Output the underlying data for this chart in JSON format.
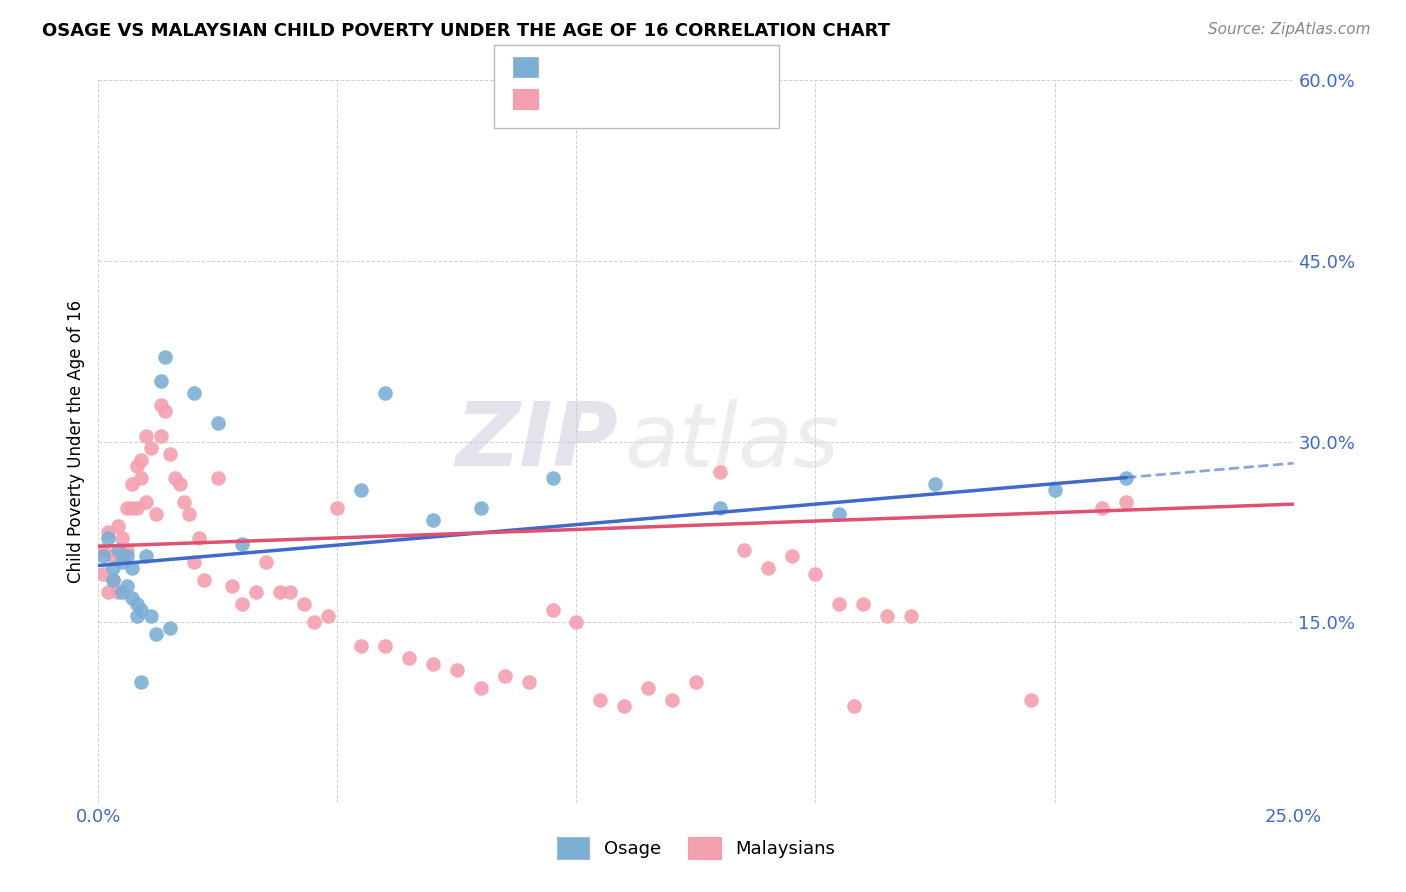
{
  "title": "OSAGE VS MALAYSIAN CHILD POVERTY UNDER THE AGE OF 16 CORRELATION CHART",
  "source": "Source: ZipAtlas.com",
  "ylabel": "Child Poverty Under the Age of 16",
  "xlim": [
    0.0,
    0.25
  ],
  "ylim": [
    0.0,
    0.6
  ],
  "xticks": [
    0.0,
    0.05,
    0.1,
    0.15,
    0.2,
    0.25
  ],
  "yticks": [
    0.0,
    0.15,
    0.3,
    0.45,
    0.6
  ],
  "xticklabels": [
    "0.0%",
    "",
    "",
    "",
    "",
    "25.0%"
  ],
  "yticklabels": [
    "",
    "15.0%",
    "30.0%",
    "45.0%",
    "60.0%"
  ],
  "osage_color": "#7bafd4",
  "malay_color": "#f4a0b0",
  "osage_line_color": "#4169c8",
  "malay_line_color": "#e05070",
  "background_color": "#ffffff",
  "grid_color": "#cccccc",
  "axis_label_color": "#4169c8",
  "watermark_zip": "ZIP",
  "watermark_atlas": "atlas",
  "osage_x": [
    0.001,
    0.002,
    0.003,
    0.003,
    0.004,
    0.005,
    0.005,
    0.006,
    0.006,
    0.007,
    0.007,
    0.008,
    0.008,
    0.009,
    0.009,
    0.01,
    0.011,
    0.012,
    0.013,
    0.014,
    0.015,
    0.02,
    0.025,
    0.03,
    0.055,
    0.06,
    0.07,
    0.08,
    0.095,
    0.13,
    0.155,
    0.175,
    0.2,
    0.215
  ],
  "osage_y": [
    0.205,
    0.22,
    0.195,
    0.185,
    0.21,
    0.2,
    0.175,
    0.205,
    0.18,
    0.195,
    0.17,
    0.165,
    0.155,
    0.16,
    0.1,
    0.205,
    0.155,
    0.14,
    0.35,
    0.37,
    0.145,
    0.34,
    0.315,
    0.215,
    0.26,
    0.34,
    0.235,
    0.245,
    0.27,
    0.245,
    0.24,
    0.265,
    0.26,
    0.27
  ],
  "malay_x": [
    0.001,
    0.001,
    0.002,
    0.002,
    0.003,
    0.003,
    0.004,
    0.004,
    0.005,
    0.005,
    0.006,
    0.006,
    0.007,
    0.007,
    0.008,
    0.008,
    0.009,
    0.009,
    0.01,
    0.01,
    0.011,
    0.012,
    0.013,
    0.013,
    0.014,
    0.015,
    0.016,
    0.017,
    0.018,
    0.019,
    0.02,
    0.021,
    0.022,
    0.025,
    0.028,
    0.03,
    0.033,
    0.035,
    0.038,
    0.04,
    0.043,
    0.045,
    0.048,
    0.05,
    0.055,
    0.06,
    0.065,
    0.07,
    0.075,
    0.08,
    0.085,
    0.09,
    0.095,
    0.1,
    0.105,
    0.11,
    0.115,
    0.12,
    0.125,
    0.13,
    0.135,
    0.14,
    0.145,
    0.15,
    0.155,
    0.158,
    0.16,
    0.165,
    0.17,
    0.195,
    0.21,
    0.215
  ],
  "malay_y": [
    0.21,
    0.19,
    0.225,
    0.175,
    0.205,
    0.185,
    0.23,
    0.175,
    0.22,
    0.205,
    0.245,
    0.21,
    0.265,
    0.245,
    0.28,
    0.245,
    0.285,
    0.27,
    0.305,
    0.25,
    0.295,
    0.24,
    0.33,
    0.305,
    0.325,
    0.29,
    0.27,
    0.265,
    0.25,
    0.24,
    0.2,
    0.22,
    0.185,
    0.27,
    0.18,
    0.165,
    0.175,
    0.2,
    0.175,
    0.175,
    0.165,
    0.15,
    0.155,
    0.245,
    0.13,
    0.13,
    0.12,
    0.115,
    0.11,
    0.095,
    0.105,
    0.1,
    0.16,
    0.15,
    0.085,
    0.08,
    0.095,
    0.085,
    0.1,
    0.275,
    0.21,
    0.195,
    0.205,
    0.19,
    0.165,
    0.08,
    0.165,
    0.155,
    0.155,
    0.085,
    0.245,
    0.25
  ],
  "osage_trend": [
    0.197,
    0.282
  ],
  "malay_trend": [
    0.213,
    0.248
  ]
}
